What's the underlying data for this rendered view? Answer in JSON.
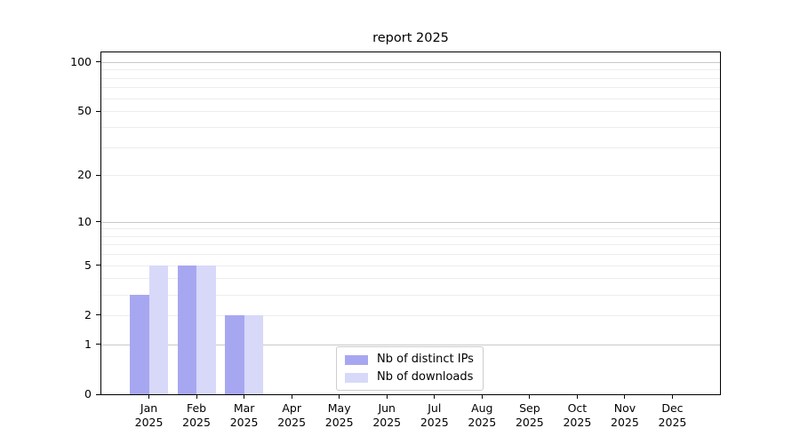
{
  "figure": {
    "background": "#ffffff",
    "text_color": "#000000",
    "spine_color": "#000000"
  },
  "chart_data": {
    "type": "bar",
    "title": "report 2025",
    "categories": [
      "Jan",
      "Feb",
      "Mar",
      "Apr",
      "May",
      "Jun",
      "Jul",
      "Aug",
      "Sep",
      "Oct",
      "Nov",
      "Dec"
    ],
    "category_year_line": "2025",
    "series": [
      {
        "name": "Nb of distinct IPs",
        "color": "#a7a7f1",
        "values": [
          3,
          5,
          2,
          0,
          0,
          0,
          0,
          0,
          0,
          0,
          0,
          0
        ]
      },
      {
        "name": "Nb of downloads",
        "color": "#d8d8f9",
        "values": [
          5,
          5,
          2,
          0,
          0,
          0,
          0,
          0,
          0,
          0,
          0,
          0
        ]
      }
    ],
    "y_axis": {
      "scale": "log1p",
      "min": 0,
      "max": 114.3,
      "tick_labels": [
        0,
        1,
        2,
        5,
        10,
        20,
        50,
        100
      ],
      "major_grid": [
        1,
        10,
        100
      ],
      "minor_grid": [
        2,
        3,
        4,
        5,
        6,
        7,
        8,
        9,
        20,
        30,
        40,
        50,
        60,
        70,
        80,
        90
      ]
    },
    "grid": {
      "major_color": "#c8c8c8",
      "minor_color": "#ededed"
    },
    "legend": {
      "position": "lower center"
    }
  }
}
